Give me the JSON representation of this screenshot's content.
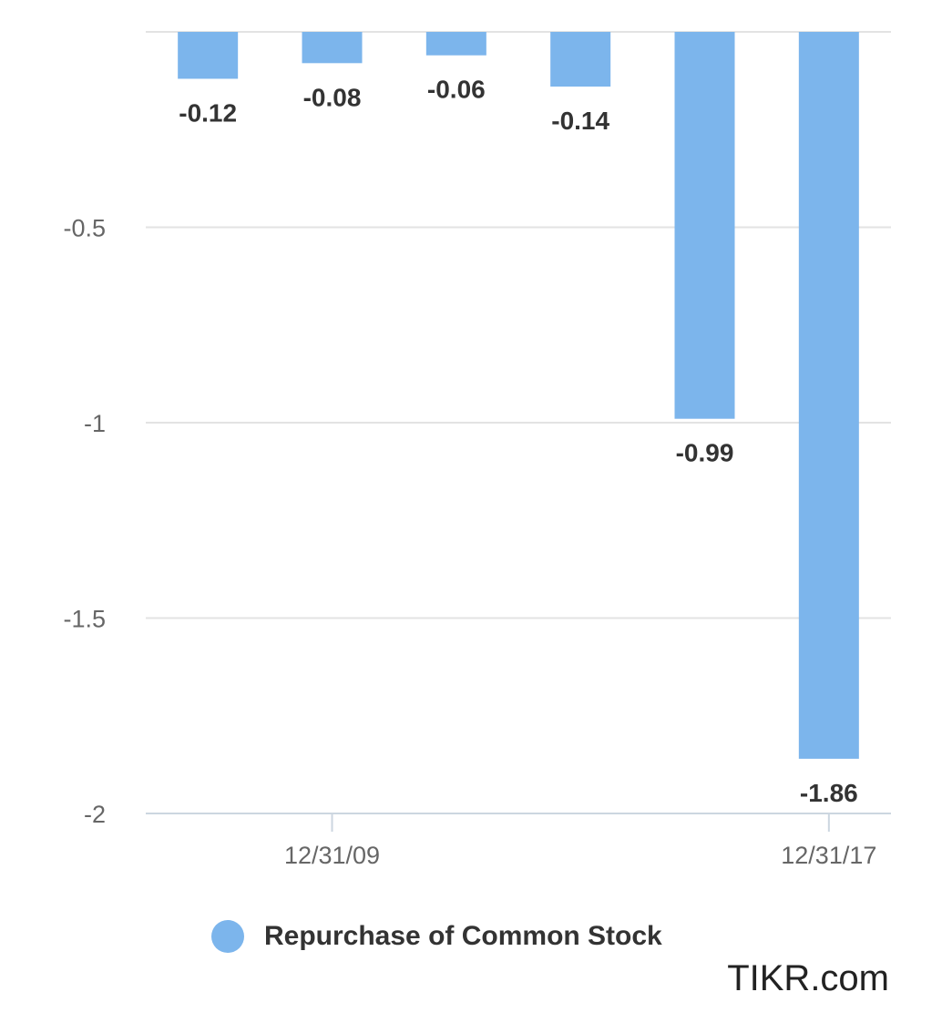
{
  "chart_data": {
    "type": "bar",
    "categories": [
      "",
      "12/31/09",
      "",
      "",
      "",
      "12/31/17"
    ],
    "x_tick_labels": [
      "12/31/09",
      "12/31/17"
    ],
    "series": [
      {
        "name": "Repurchase of Common Stock",
        "values": [
          -0.12,
          -0.08,
          -0.06,
          -0.14,
          -0.99,
          -1.86
        ],
        "data_labels": [
          "-0.12",
          "-0.08",
          "-0.06",
          "-0.14",
          "-0.99",
          "-1.86"
        ]
      }
    ],
    "title": "",
    "xlabel": "",
    "ylabel": "",
    "ylim": [
      -2,
      0
    ],
    "y_ticks": [
      -2,
      -1.5,
      -1,
      -0.5
    ],
    "y_tick_labels": [
      "-2",
      "-1.5",
      "-1",
      "-0.5"
    ],
    "grid": true,
    "legend_position": "bottom",
    "colors": {
      "bar": "#7cb5ec",
      "grid": "#e3e3e3",
      "axis": "#ccd6e0"
    }
  },
  "legend": {
    "label": "Repurchase of Common Stock"
  },
  "watermark": {
    "text": "TIKR.com"
  }
}
